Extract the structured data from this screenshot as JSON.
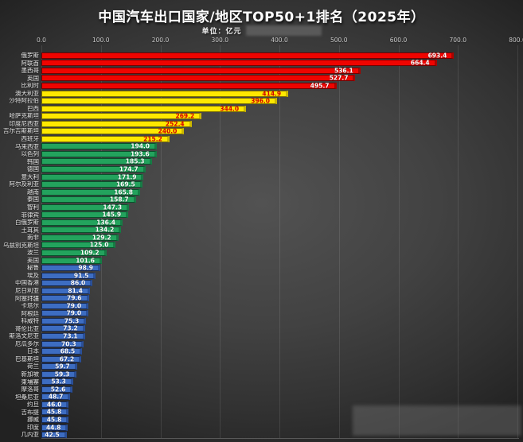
{
  "title": "中国汽车出口国家/地区TOP50+1排名（2025年）",
  "unit_label": "单位：亿元",
  "colors": {
    "background_center": "#525252",
    "background_edge": "#222222",
    "tier_red": "#ef0400",
    "tier_yellow": "#ffe800",
    "tier_green": "#23a35d",
    "tier_blue": "#3d6dc2",
    "value_text_on_yellow": "#d40000",
    "value_text_default": "#ffffff",
    "axis_text": "#c9c9c9"
  },
  "chart_data": {
    "type": "bar",
    "orientation": "horizontal",
    "title": "中国汽车出口国家/地区TOP50+1排名（2025年）",
    "unit": "亿元",
    "xlabel": "",
    "ylabel": "",
    "xlim": [
      0,
      800
    ],
    "grid": true,
    "tick_values": [
      0,
      100,
      200,
      300,
      400,
      500,
      600,
      700,
      800
    ],
    "ticks": [
      "0.0",
      "100.0",
      "200.0",
      "300.0",
      "400.0",
      "500.0",
      "600.0",
      "700.0",
      "800.0"
    ],
    "rows": [
      {
        "label": "俄罗斯",
        "value": 693.4,
        "display": "693.4",
        "tier": "red"
      },
      {
        "label": "阿联酋",
        "value": 664.4,
        "display": "664.4",
        "tier": "red"
      },
      {
        "label": "墨西哥",
        "value": 536.1,
        "display": "536.1",
        "tier": "red"
      },
      {
        "label": "英国",
        "value": 527.7,
        "display": "527.7",
        "tier": "red"
      },
      {
        "label": "比利时",
        "value": 495.7,
        "display": "495.7",
        "tier": "red"
      },
      {
        "label": "澳大利亚",
        "value": 414.9,
        "display": "414.9",
        "tier": "yellow"
      },
      {
        "label": "沙特阿拉伯",
        "value": 396.0,
        "display": "396.0",
        "tier": "yellow"
      },
      {
        "label": "巴西",
        "value": 344.0,
        "display": "344.0",
        "tier": "yellow"
      },
      {
        "label": "哈萨克斯坦",
        "value": 269.2,
        "display": "269.2",
        "tier": "yellow"
      },
      {
        "label": "印度尼西亚",
        "value": 252.4,
        "display": "252.4",
        "tier": "yellow"
      },
      {
        "label": "吉尔吉斯斯坦",
        "value": 240.0,
        "display": "240.0",
        "tier": "yellow"
      },
      {
        "label": "西班牙",
        "value": 215.2,
        "display": "215.2",
        "tier": "yellow"
      },
      {
        "label": "马来西亚",
        "value": 194.0,
        "display": "194.0",
        "tier": "green"
      },
      {
        "label": "以色列",
        "value": 193.6,
        "display": "193.6",
        "tier": "green"
      },
      {
        "label": "韩国",
        "value": 185.3,
        "display": "185.3",
        "tier": "green"
      },
      {
        "label": "德国",
        "value": 174.7,
        "display": "174.7",
        "tier": "green"
      },
      {
        "label": "意大利",
        "value": 171.9,
        "display": "171.9",
        "tier": "green"
      },
      {
        "label": "阿尔及利亚",
        "value": 169.5,
        "display": "169.5",
        "tier": "green"
      },
      {
        "label": "越南",
        "value": 165.8,
        "display": "165.8",
        "tier": "green"
      },
      {
        "label": "泰国",
        "value": 158.7,
        "display": "158.7",
        "tier": "green"
      },
      {
        "label": "智利",
        "value": 147.3,
        "display": "147.3",
        "tier": "green"
      },
      {
        "label": "菲律宾",
        "value": 145.9,
        "display": "145.9",
        "tier": "green"
      },
      {
        "label": "白俄罗斯",
        "value": 136.4,
        "display": "136.4",
        "tier": "green"
      },
      {
        "label": "土耳其",
        "value": 134.2,
        "display": "134.2",
        "tier": "green"
      },
      {
        "label": "南非",
        "value": 129.2,
        "display": "129.2",
        "tier": "green"
      },
      {
        "label": "乌兹别克斯坦",
        "value": 125.0,
        "display": "125.0",
        "tier": "green"
      },
      {
        "label": "波兰",
        "value": 109.2,
        "display": "109.2",
        "tier": "green"
      },
      {
        "label": "美国",
        "value": 101.6,
        "display": "101.6",
        "tier": "green"
      },
      {
        "label": "秘鲁",
        "value": 98.9,
        "display": "98.9",
        "tier": "blue"
      },
      {
        "label": "埃及",
        "value": 91.5,
        "display": "91.5",
        "tier": "blue"
      },
      {
        "label": "中国香港",
        "value": 86.0,
        "display": "86.0",
        "tier": "blue"
      },
      {
        "label": "尼日利亚",
        "value": 81.4,
        "display": "81.4",
        "tier": "blue"
      },
      {
        "label": "阿塞拜疆",
        "value": 79.6,
        "display": "79.6",
        "tier": "blue"
      },
      {
        "label": "卡塔尔",
        "value": 79.0,
        "display": "79.0",
        "tier": "blue"
      },
      {
        "label": "阿根廷",
        "value": 79.0,
        "display": "79.0",
        "tier": "blue"
      },
      {
        "label": "科威特",
        "value": 75.3,
        "display": "75.3",
        "tier": "blue"
      },
      {
        "label": "哥伦比亚",
        "value": 73.2,
        "display": "73.2",
        "tier": "blue"
      },
      {
        "label": "斯洛文尼亚",
        "value": 73.1,
        "display": "73.1",
        "tier": "blue"
      },
      {
        "label": "厄瓜多尔",
        "value": 70.3,
        "display": "70.3",
        "tier": "blue"
      },
      {
        "label": "日本",
        "value": 68.5,
        "display": "68.5",
        "tier": "blue"
      },
      {
        "label": "巴基斯坦",
        "value": 67.2,
        "display": "67.2",
        "tier": "blue"
      },
      {
        "label": "荷兰",
        "value": 59.7,
        "display": "59.7",
        "tier": "blue"
      },
      {
        "label": "新加坡",
        "value": 59.3,
        "display": "59.3",
        "tier": "blue"
      },
      {
        "label": "柬埔寨",
        "value": 53.3,
        "display": "53.3",
        "tier": "blue"
      },
      {
        "label": "摩洛哥",
        "value": 52.6,
        "display": "52.6",
        "tier": "blue"
      },
      {
        "label": "坦桑尼亚",
        "value": 48.7,
        "display": "48.7",
        "tier": "blue"
      },
      {
        "label": "约旦",
        "value": 46.0,
        "display": "46.0",
        "tier": "blue"
      },
      {
        "label": "吉布提",
        "value": 45.8,
        "display": "45.8",
        "tier": "blue"
      },
      {
        "label": "挪威",
        "value": 45.8,
        "display": "45.8",
        "tier": "blue"
      },
      {
        "label": "印度",
        "value": 44.8,
        "display": "44.8",
        "tier": "blue"
      },
      {
        "label": "几内亚",
        "value": 42.5,
        "display": "42.5",
        "tier": "blue"
      }
    ]
  }
}
